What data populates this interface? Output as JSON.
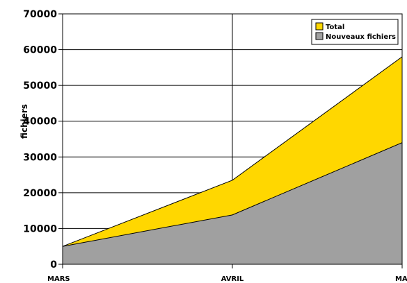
{
  "chart_data": {
    "type": "area",
    "title": "",
    "xlabel": "",
    "ylabel": "fichiers",
    "categories": [
      "MARS",
      "AVRIL",
      "MAI"
    ],
    "ylim": [
      0,
      70000
    ],
    "y_ticks": [
      "0",
      "10000",
      "20000",
      "30000",
      "40000",
      "50000",
      "60000",
      "70000"
    ],
    "grid": {
      "horizontal": true,
      "vertical": true
    },
    "legend_position": "top-right",
    "series": [
      {
        "name": "Total",
        "values": [
          5000,
          23500,
          58000
        ],
        "color": "#ffd700"
      },
      {
        "name": "Nouveaux fichiers",
        "values": [
          5000,
          13800,
          34000
        ],
        "color": "#a0a0a0"
      }
    ]
  }
}
